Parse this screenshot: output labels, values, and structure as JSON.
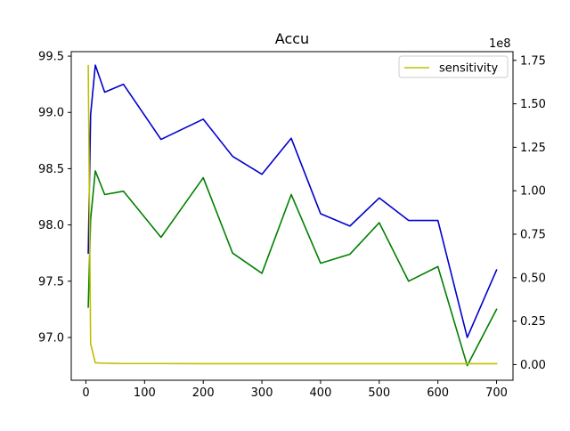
{
  "chart_data": {
    "type": "line",
    "title": "Accu",
    "xlabel": "",
    "ylabel_left": "",
    "ylabel_right": "",
    "xlim": [
      -25,
      728
    ],
    "ylim_left": [
      96.62,
      99.54
    ],
    "ylim_right": [
      -0.09,
      1.8
    ],
    "right_axis_offset_label": "1e8",
    "x_ticks": [
      0,
      100,
      200,
      300,
      400,
      500,
      600,
      700
    ],
    "y_ticks_left": [
      97.0,
      97.5,
      98.0,
      98.5,
      99.0,
      99.5
    ],
    "y_ticks_left_labels": [
      "97.0",
      "97.5",
      "98.0",
      "98.5",
      "99.0",
      "99.5"
    ],
    "y_ticks_right": [
      0.0,
      0.25,
      0.5,
      0.75,
      1.0,
      1.25,
      1.5,
      1.75
    ],
    "y_ticks_right_labels": [
      "0.00",
      "0.25",
      "0.50",
      "0.75",
      "1.00",
      "1.25",
      "1.50",
      "1.75"
    ],
    "legend_position": "top-right",
    "grid": false,
    "series": [
      {
        "name": "",
        "color": "#0000cc",
        "axis": "left",
        "x": [
          4,
          8,
          16,
          32,
          64,
          128,
          200,
          250,
          300,
          350,
          400,
          450,
          500,
          550,
          600,
          650,
          700
        ],
        "values": [
          97.75,
          98.98,
          99.42,
          99.18,
          99.25,
          98.76,
          98.94,
          98.61,
          98.45,
          98.77,
          98.1,
          97.99,
          98.24,
          98.04,
          98.04,
          97.0,
          97.6
        ]
      },
      {
        "name": "",
        "color": "#008000",
        "axis": "left",
        "x": [
          4,
          8,
          16,
          32,
          64,
          128,
          200,
          250,
          300,
          350,
          400,
          450,
          500,
          550,
          600,
          650,
          700
        ],
        "values": [
          97.27,
          98.05,
          98.48,
          98.27,
          98.3,
          97.89,
          98.42,
          97.75,
          97.57,
          98.27,
          97.66,
          97.74,
          98.02,
          97.5,
          97.63,
          96.75,
          97.25
        ]
      },
      {
        "name": "sensitivity",
        "color": "#bfbf00",
        "axis": "right",
        "x": [
          4,
          8,
          16,
          32,
          64,
          128,
          200,
          250,
          300,
          350,
          400,
          450,
          500,
          550,
          600,
          650,
          700
        ],
        "values": [
          1.72,
          0.12,
          0.01,
          0.008,
          0.006,
          0.006,
          0.005,
          0.005,
          0.005,
          0.005,
          0.005,
          0.005,
          0.005,
          0.005,
          0.005,
          0.005,
          0.005
        ]
      }
    ]
  }
}
